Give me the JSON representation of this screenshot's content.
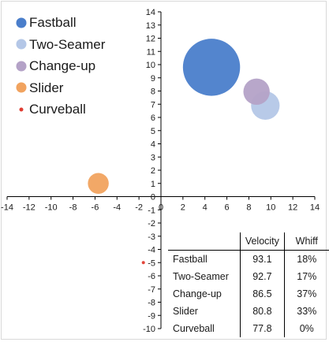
{
  "chart_data": {
    "type": "bubble",
    "xlim": [
      -14,
      14
    ],
    "ylim": [
      -10,
      14
    ],
    "x_ticks": [
      "-14",
      "-12",
      "-10",
      "-8",
      "-6",
      "-4",
      "-2",
      "0",
      "2",
      "4",
      "6",
      "8",
      "10",
      "12",
      "14"
    ],
    "y_ticks": [
      "14",
      "13",
      "12",
      "11",
      "10",
      "9",
      "8",
      "7",
      "6",
      "5",
      "4",
      "3",
      "2",
      "1",
      "0",
      "-1",
      "-2",
      "-3",
      "-4",
      "-5",
      "-6",
      "-7",
      "-8",
      "-9",
      "-10"
    ],
    "legend_position": "top-left",
    "grid": false,
    "series": [
      {
        "name": "Fastball",
        "x": 4.6,
        "y": 9.8,
        "bubble_radius_units": 2.6,
        "color": "#4a7ecb"
      },
      {
        "name": "Two-Seamer",
        "x": 9.5,
        "y": 6.9,
        "bubble_radius_units": 1.3,
        "color": "#b4c7e7"
      },
      {
        "name": "Change-up",
        "x": 8.7,
        "y": 7.95,
        "bubble_radius_units": 1.2,
        "color": "#b4a2c7"
      },
      {
        "name": "Slider",
        "x": -5.7,
        "y": 1.0,
        "bubble_radius_units": 0.95,
        "color": "#f1a35f"
      },
      {
        "name": "Curveball",
        "x": -1.6,
        "y": -5.0,
        "bubble_radius_units": 0.12,
        "color": "#e03c31"
      }
    ]
  },
  "table": {
    "headers": [
      "",
      "Velocity",
      "Whiff"
    ],
    "rows": [
      [
        "Fastball",
        "93.1",
        "18%"
      ],
      [
        "Two-Seamer",
        "92.7",
        "17%"
      ],
      [
        "Change-up",
        "86.5",
        "37%"
      ],
      [
        "Slider",
        "80.8",
        "33%"
      ],
      [
        "Curveball",
        "77.8",
        "0%"
      ]
    ]
  }
}
